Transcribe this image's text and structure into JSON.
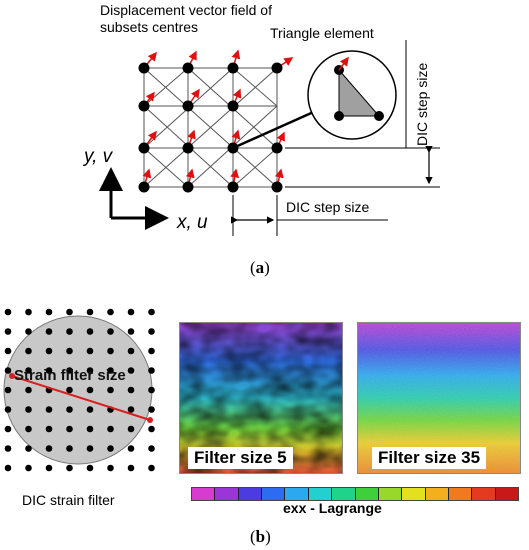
{
  "part_a": {
    "title_line1": "Displacement vector field of",
    "title_line2": "subsets centres",
    "triangle_label": "Triangle element",
    "y_axis": "y, v",
    "x_axis": "x, u",
    "step_horizontal": "DIC step size",
    "step_vertical": "DIC step size",
    "caption_open": "(",
    "caption_letter": "a",
    "caption_close": ")"
  },
  "part_b": {
    "strain_filter_size": "Strain filter size",
    "dic_strain_filter": "DIC strain filter",
    "panel_left_caption": "Filter size 5",
    "panel_right_caption": "Filter size 35",
    "colorbar_label": "exx - Lagrange",
    "colorbar_colors": [
      "#d83bd0",
      "#9b35d8",
      "#4b3be0",
      "#2c6cf0",
      "#2aa8f0",
      "#22d0d0",
      "#1fd38a",
      "#3fcf3a",
      "#98d82a",
      "#e3e020",
      "#f4b01c",
      "#f27a1e",
      "#e43a20",
      "#c81818"
    ],
    "caption_open": "(",
    "caption_letter": "b",
    "caption_close": ")"
  },
  "colors": {
    "arrow": "#e01010",
    "node": "#000000",
    "filter_circle": "#c8c8c8",
    "diameter_line": "#d81e1e"
  }
}
